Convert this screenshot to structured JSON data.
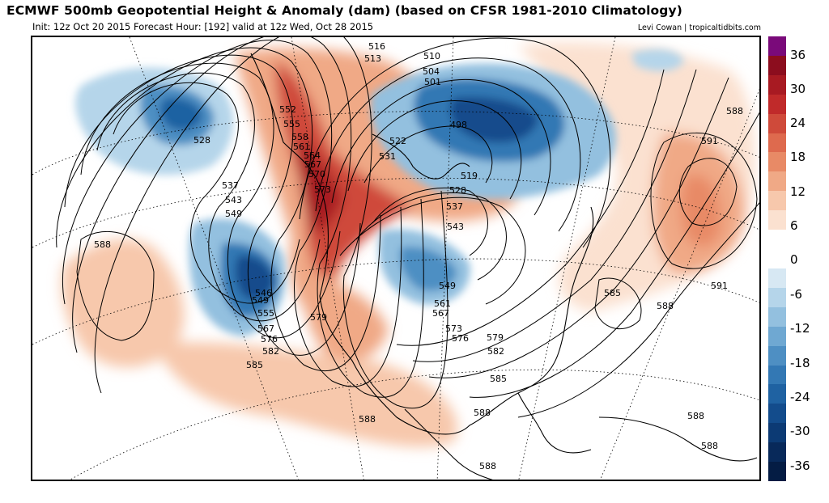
{
  "header": {
    "title": "ECMWF 500mb Geopotential Height & Anomaly (dam) (based on CFSR 1981-2010 Climatology)",
    "subtitle": "Init: 12z Oct 20 2015   Forecast Hour: [192]   valid at 12z Wed, Oct 28 2015",
    "credit": "Levi Cowan | tropicaltidbits.com"
  },
  "colorbar": {
    "ticks": [
      "36",
      "30",
      "24",
      "18",
      "12",
      "6",
      "0",
      "-6",
      "-12",
      "-18",
      "-24",
      "-30",
      "-36"
    ],
    "colors": [
      "#7a0a7a",
      "#8c0d1e",
      "#a81a22",
      "#c02a2a",
      "#cf4a3a",
      "#de6a4e",
      "#e88a66",
      "#f0a986",
      "#f7c8ac",
      "#fbe1d0",
      "#ffffff",
      "#ffffff",
      "#d7e8f3",
      "#b5d5ea",
      "#93c0df",
      "#6fa8d2",
      "#4e8fc3",
      "#3378b4",
      "#1f62a2",
      "#134c8c",
      "#0c3a74",
      "#08295a",
      "#041c44"
    ]
  },
  "contour_labels": [
    "516",
    "513",
    "510",
    "504",
    "501",
    "498",
    "522",
    "531",
    "519",
    "528",
    "537",
    "543",
    "528",
    "537",
    "543",
    "549",
    "552",
    "555",
    "558",
    "561",
    "564",
    "567",
    "570",
    "573",
    "546",
    "549",
    "555",
    "567",
    "576",
    "582",
    "585",
    "579",
    "549",
    "561",
    "567",
    "573",
    "576",
    "579",
    "582",
    "585",
    "588",
    "588",
    "588",
    "588",
    "588",
    "588",
    "585",
    "588",
    "591",
    "591",
    "588"
  ],
  "colors": {
    "ridge": "#c02a2a",
    "trough": "#134c8c"
  }
}
